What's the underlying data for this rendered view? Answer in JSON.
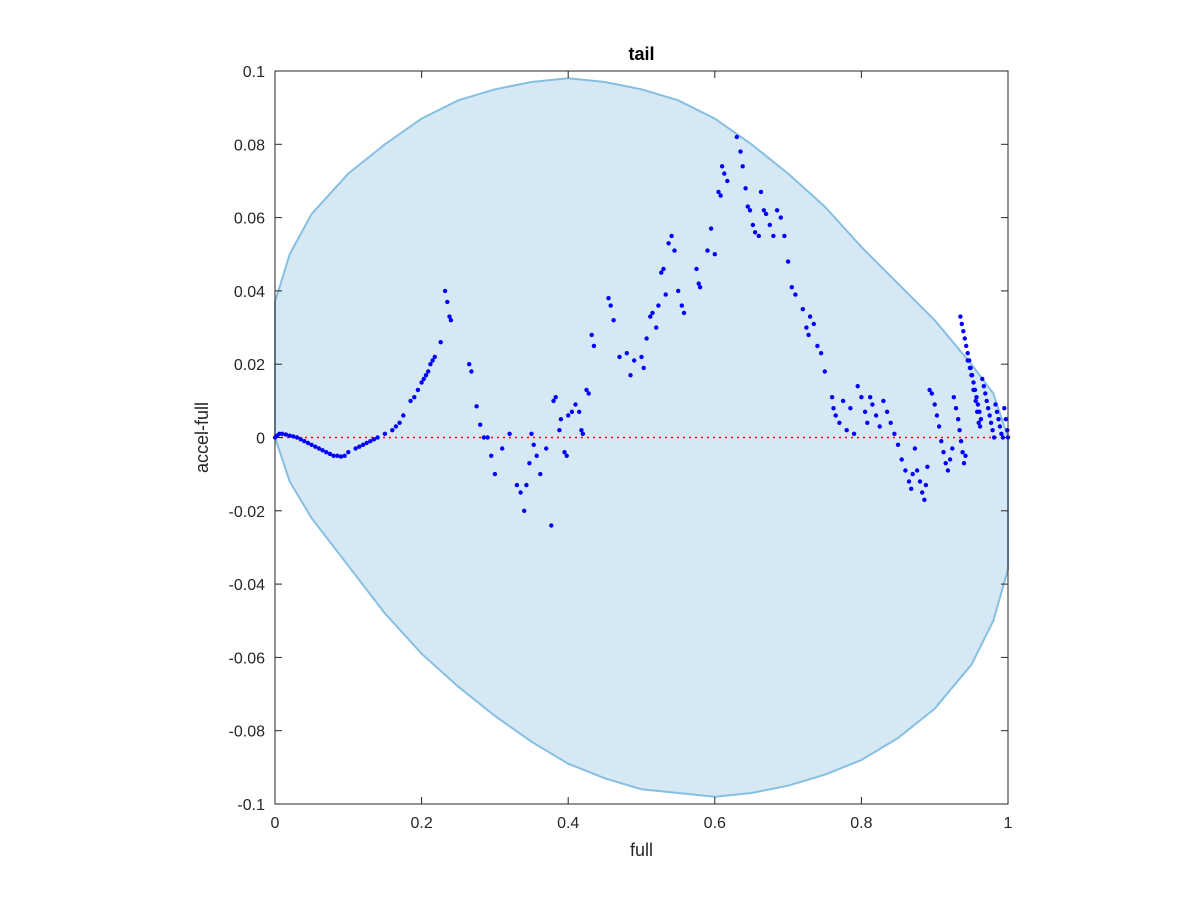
{
  "chart_data": {
    "type": "scatter",
    "title": "tail",
    "xlabel": "full",
    "ylabel": "accel-full",
    "xlim": [
      0,
      1
    ],
    "ylim": [
      -0.1,
      0.1
    ],
    "x_ticks": [
      0,
      0.2,
      0.4,
      0.6,
      0.8,
      1
    ],
    "x_tick_labels": [
      "0",
      "0.2",
      "0.4",
      "0.6",
      "0.8",
      "1"
    ],
    "y_ticks": [
      -0.1,
      -0.08,
      -0.06,
      -0.04,
      -0.02,
      0,
      0.02,
      0.04,
      0.06,
      0.08,
      0.1
    ],
    "y_tick_labels": [
      "-0.1",
      "-0.08",
      "-0.06",
      "-0.04",
      "-0.02",
      "0",
      "0.02",
      "0.04",
      "0.06",
      "0.08",
      "0.1"
    ],
    "grid": false,
    "colors": {
      "points": "#0000ff",
      "zero_line": "#ff0000",
      "region_fill": "#d6e8f4",
      "region_edge": "#86bfe2",
      "axes": "#262626"
    },
    "region": {
      "type": "envelope",
      "x": [
        0,
        0.02,
        0.05,
        0.1,
        0.15,
        0.2,
        0.25,
        0.3,
        0.35,
        0.4,
        0.45,
        0.5,
        0.55,
        0.6,
        0.65,
        0.7,
        0.75,
        0.8,
        0.85,
        0.9,
        0.95,
        0.98,
        1
      ],
      "upper": [
        0.037,
        0.05,
        0.061,
        0.072,
        0.08,
        0.087,
        0.092,
        0.095,
        0.097,
        0.098,
        0.097,
        0.095,
        0.092,
        0.087,
        0.08,
        0.072,
        0.063,
        0.052,
        0.042,
        0.032,
        0.02,
        0.012,
        0
      ],
      "lower": [
        0,
        -0.012,
        -0.022,
        -0.035,
        -0.048,
        -0.059,
        -0.068,
        -0.076,
        -0.083,
        -0.089,
        -0.093,
        -0.096,
        -0.097,
        -0.098,
        -0.097,
        -0.095,
        -0.092,
        -0.088,
        -0.082,
        -0.074,
        -0.062,
        -0.05,
        -0.036
      ]
    },
    "zero_line": 0,
    "series": [
      {
        "points": [
          [
            0.0,
            0.0
          ],
          [
            0.003,
            0.0005
          ],
          [
            0.006,
            0.001
          ],
          [
            0.01,
            0.001
          ],
          [
            0.015,
            0.0008
          ],
          [
            0.02,
            0.0005
          ],
          [
            0.025,
            0.0003
          ],
          [
            0.03,
            0.0
          ],
          [
            0.035,
            -0.0005
          ],
          [
            0.04,
            -0.001
          ],
          [
            0.045,
            -0.0015
          ],
          [
            0.05,
            -0.002
          ],
          [
            0.055,
            -0.0025
          ],
          [
            0.06,
            -0.003
          ],
          [
            0.065,
            -0.0035
          ],
          [
            0.07,
            -0.004
          ],
          [
            0.075,
            -0.0045
          ],
          [
            0.08,
            -0.005
          ],
          [
            0.085,
            -0.005
          ],
          [
            0.09,
            -0.0052
          ],
          [
            0.095,
            -0.005
          ],
          [
            0.1,
            -0.004
          ],
          [
            0.11,
            -0.003
          ],
          [
            0.115,
            -0.0025
          ],
          [
            0.12,
            -0.002
          ],
          [
            0.125,
            -0.0015
          ],
          [
            0.13,
            -0.001
          ],
          [
            0.135,
            -0.0005
          ],
          [
            0.14,
            0.0
          ],
          [
            0.15,
            0.001
          ],
          [
            0.16,
            0.002
          ],
          [
            0.165,
            0.003
          ],
          [
            0.17,
            0.004
          ],
          [
            0.175,
            0.006
          ],
          [
            0.185,
            0.01
          ],
          [
            0.19,
            0.011
          ],
          [
            0.195,
            0.013
          ],
          [
            0.2,
            0.015
          ],
          [
            0.203,
            0.016
          ],
          [
            0.206,
            0.017
          ],
          [
            0.209,
            0.018
          ],
          [
            0.212,
            0.02
          ],
          [
            0.215,
            0.021
          ],
          [
            0.218,
            0.022
          ],
          [
            0.226,
            0.026
          ],
          [
            0.232,
            0.04
          ],
          [
            0.235,
            0.037
          ],
          [
            0.238,
            0.033
          ],
          [
            0.24,
            0.032
          ],
          [
            0.265,
            0.02
          ],
          [
            0.268,
            0.018
          ],
          [
            0.275,
            0.0085
          ],
          [
            0.28,
            0.0035
          ],
          [
            0.285,
            0.0
          ],
          [
            0.29,
            0.0
          ],
          [
            0.295,
            -0.005
          ],
          [
            0.3,
            -0.01
          ],
          [
            0.31,
            -0.003
          ],
          [
            0.32,
            0.001
          ],
          [
            0.33,
            -0.013
          ],
          [
            0.335,
            -0.015
          ],
          [
            0.34,
            -0.02
          ],
          [
            0.343,
            -0.013
          ],
          [
            0.347,
            -0.007
          ],
          [
            0.35,
            0.001
          ],
          [
            0.353,
            -0.002
          ],
          [
            0.357,
            -0.005
          ],
          [
            0.362,
            -0.01
          ],
          [
            0.37,
            -0.003
          ],
          [
            0.377,
            -0.024
          ],
          [
            0.38,
            0.01
          ],
          [
            0.383,
            0.011
          ],
          [
            0.388,
            0.002
          ],
          [
            0.39,
            0.005
          ],
          [
            0.395,
            -0.004
          ],
          [
            0.398,
            -0.005
          ],
          [
            0.4,
            0.006
          ],
          [
            0.405,
            0.007
          ],
          [
            0.41,
            0.009
          ],
          [
            0.415,
            0.007
          ],
          [
            0.418,
            0.002
          ],
          [
            0.42,
            0.001
          ],
          [
            0.425,
            0.013
          ],
          [
            0.428,
            0.012
          ],
          [
            0.432,
            0.028
          ],
          [
            0.435,
            0.025
          ],
          [
            0.455,
            0.038
          ],
          [
            0.458,
            0.036
          ],
          [
            0.462,
            0.032
          ],
          [
            0.47,
            0.022
          ],
          [
            0.48,
            0.023
          ],
          [
            0.485,
            0.017
          ],
          [
            0.49,
            0.021
          ],
          [
            0.5,
            0.022
          ],
          [
            0.503,
            0.019
          ],
          [
            0.507,
            0.027
          ],
          [
            0.512,
            0.033
          ],
          [
            0.515,
            0.034
          ],
          [
            0.52,
            0.03
          ],
          [
            0.523,
            0.036
          ],
          [
            0.527,
            0.045
          ],
          [
            0.53,
            0.046
          ],
          [
            0.533,
            0.039
          ],
          [
            0.537,
            0.053
          ],
          [
            0.541,
            0.055
          ],
          [
            0.545,
            0.051
          ],
          [
            0.55,
            0.04
          ],
          [
            0.555,
            0.036
          ],
          [
            0.558,
            0.034
          ],
          [
            0.575,
            0.046
          ],
          [
            0.578,
            0.042
          ],
          [
            0.58,
            0.041
          ],
          [
            0.59,
            0.051
          ],
          [
            0.595,
            0.057
          ],
          [
            0.6,
            0.05
          ],
          [
            0.605,
            0.067
          ],
          [
            0.608,
            0.066
          ],
          [
            0.61,
            0.074
          ],
          [
            0.613,
            0.072
          ],
          [
            0.617,
            0.07
          ],
          [
            0.63,
            0.082
          ],
          [
            0.635,
            0.078
          ],
          [
            0.638,
            0.074
          ],
          [
            0.642,
            0.068
          ],
          [
            0.645,
            0.063
          ],
          [
            0.648,
            0.062
          ],
          [
            0.652,
            0.058
          ],
          [
            0.655,
            0.056
          ],
          [
            0.66,
            0.055
          ],
          [
            0.663,
            0.067
          ],
          [
            0.667,
            0.062
          ],
          [
            0.67,
            0.061
          ],
          [
            0.675,
            0.058
          ],
          [
            0.68,
            0.055
          ],
          [
            0.685,
            0.062
          ],
          [
            0.69,
            0.06
          ],
          [
            0.695,
            0.055
          ],
          [
            0.7,
            0.048
          ],
          [
            0.705,
            0.041
          ],
          [
            0.71,
            0.039
          ],
          [
            0.72,
            0.035
          ],
          [
            0.725,
            0.03
          ],
          [
            0.728,
            0.028
          ],
          [
            0.73,
            0.033
          ],
          [
            0.735,
            0.031
          ],
          [
            0.74,
            0.025
          ],
          [
            0.745,
            0.023
          ],
          [
            0.75,
            0.018
          ],
          [
            0.76,
            0.011
          ],
          [
            0.762,
            0.008
          ],
          [
            0.765,
            0.006
          ],
          [
            0.77,
            0.004
          ],
          [
            0.775,
            0.01
          ],
          [
            0.78,
            0.002
          ],
          [
            0.785,
            0.008
          ],
          [
            0.79,
            0.001
          ],
          [
            0.795,
            0.014
          ],
          [
            0.8,
            0.011
          ],
          [
            0.805,
            0.007
          ],
          [
            0.808,
            0.004
          ],
          [
            0.812,
            0.011
          ],
          [
            0.815,
            0.009
          ],
          [
            0.82,
            0.006
          ],
          [
            0.825,
            0.003
          ],
          [
            0.83,
            0.01
          ],
          [
            0.835,
            0.007
          ],
          [
            0.84,
            0.004
          ],
          [
            0.845,
            0.001
          ],
          [
            0.85,
            -0.002
          ],
          [
            0.855,
            -0.006
          ],
          [
            0.86,
            -0.009
          ],
          [
            0.865,
            -0.012
          ],
          [
            0.868,
            -0.014
          ],
          [
            0.87,
            -0.01
          ],
          [
            0.873,
            -0.003
          ],
          [
            0.876,
            -0.009
          ],
          [
            0.88,
            -0.012
          ],
          [
            0.883,
            -0.015
          ],
          [
            0.886,
            -0.017
          ],
          [
            0.888,
            -0.013
          ],
          [
            0.89,
            -0.008
          ],
          [
            0.893,
            0.013
          ],
          [
            0.896,
            0.012
          ],
          [
            0.9,
            0.009
          ],
          [
            0.903,
            0.006
          ],
          [
            0.906,
            0.003
          ],
          [
            0.909,
            -0.001
          ],
          [
            0.912,
            -0.004
          ],
          [
            0.915,
            -0.007
          ],
          [
            0.918,
            -0.009
          ],
          [
            0.921,
            -0.006
          ],
          [
            0.924,
            -0.003
          ],
          [
            0.926,
            0.011
          ],
          [
            0.929,
            0.008
          ],
          [
            0.932,
            0.005
          ],
          [
            0.934,
            0.002
          ],
          [
            0.936,
            -0.001
          ],
          [
            0.938,
            -0.004
          ],
          [
            0.94,
            -0.007
          ],
          [
            0.942,
            -0.005
          ],
          [
            0.945,
            0.021
          ],
          [
            0.948,
            0.019
          ],
          [
            0.95,
            0.017
          ],
          [
            0.953,
            0.013
          ],
          [
            0.956,
            0.01
          ],
          [
            0.958,
            0.007
          ],
          [
            0.96,
            0.004
          ],
          [
            0.962,
            0.003
          ],
          [
            0.935,
            0.033
          ],
          [
            0.937,
            0.031
          ],
          [
            0.939,
            0.029
          ],
          [
            0.941,
            0.027
          ],
          [
            0.943,
            0.025
          ],
          [
            0.945,
            0.023
          ],
          [
            0.947,
            0.021
          ],
          [
            0.949,
            0.019
          ],
          [
            0.951,
            0.017
          ],
          [
            0.953,
            0.015
          ],
          [
            0.955,
            0.013
          ],
          [
            0.957,
            0.011
          ],
          [
            0.959,
            0.009
          ],
          [
            0.961,
            0.007
          ],
          [
            0.963,
            0.005
          ],
          [
            0.965,
            0.016
          ],
          [
            0.967,
            0.014
          ],
          [
            0.969,
            0.012
          ],
          [
            0.971,
            0.01
          ],
          [
            0.973,
            0.008
          ],
          [
            0.975,
            0.006
          ],
          [
            0.977,
            0.004
          ],
          [
            0.979,
            0.002
          ],
          [
            0.981,
            0.0
          ],
          [
            0.983,
            0.009
          ],
          [
            0.985,
            0.007
          ],
          [
            0.987,
            0.005
          ],
          [
            0.989,
            0.003
          ],
          [
            0.991,
            0.001
          ],
          [
            0.993,
            0.0
          ],
          [
            0.995,
            0.008
          ],
          [
            0.997,
            0.005
          ],
          [
            0.999,
            0.002
          ],
          [
            1.0,
            0.0
          ]
        ]
      }
    ]
  }
}
